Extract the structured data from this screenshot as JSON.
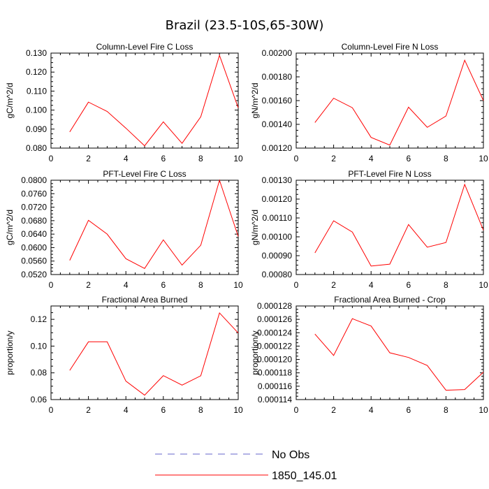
{
  "figure": {
    "title": "Brazil (23.5-10S,65-30W)"
  },
  "colors": {
    "model": "#ff0000",
    "obs": "#6666cc",
    "axis": "#000000"
  },
  "legend": {
    "entries": [
      {
        "label": "No Obs",
        "style": "dashed",
        "color": "#6666cc"
      },
      {
        "label": "1850_145.01",
        "style": "solid",
        "color": "#ff0000"
      }
    ]
  },
  "chart_data": [
    {
      "type": "line",
      "title": "Column-Level Fire C Loss",
      "ylabel": "gC/m^2/d",
      "xlim": [
        0,
        10
      ],
      "ylim": [
        0.08,
        0.13
      ],
      "xticks": [
        0,
        2,
        4,
        6,
        8,
        10
      ],
      "yticks": [
        0.08,
        0.09,
        0.1,
        0.11,
        0.12,
        0.13
      ],
      "yticklabels": [
        "0.080",
        "0.090",
        "0.100",
        "0.110",
        "0.120",
        "0.130"
      ],
      "series": [
        {
          "name": "1850_145.01",
          "x": [
            1,
            2,
            3,
            4,
            5,
            6,
            7,
            8,
            9,
            10
          ],
          "values": [
            0.0885,
            0.1042,
            0.0993,
            0.0905,
            0.0812,
            0.0938,
            0.0825,
            0.0965,
            0.1288,
            0.1012
          ]
        }
      ]
    },
    {
      "type": "line",
      "title": "Column-Level Fire N Loss",
      "ylabel": "gN/m^2/d",
      "xlim": [
        0,
        10
      ],
      "ylim": [
        0.0012,
        0.002
      ],
      "xticks": [
        0,
        2,
        4,
        6,
        8,
        10
      ],
      "yticks": [
        0.0012,
        0.0014,
        0.0016,
        0.0018,
        0.002
      ],
      "yticklabels": [
        "0.00120",
        "0.00140",
        "0.00160",
        "0.00180",
        "0.00200"
      ],
      "series": [
        {
          "name": "1850_145.01",
          "x": [
            1,
            2,
            3,
            4,
            5,
            6,
            7,
            8,
            9,
            10
          ],
          "values": [
            0.001415,
            0.00162,
            0.00154,
            0.00129,
            0.001225,
            0.001545,
            0.001375,
            0.00147,
            0.00194,
            0.0016
          ]
        }
      ]
    },
    {
      "type": "line",
      "title": "PFT-Level Fire C Loss",
      "ylabel": "gC/m^2/d",
      "xlim": [
        0,
        10
      ],
      "ylim": [
        0.052,
        0.08
      ],
      "xticks": [
        0,
        2,
        4,
        6,
        8,
        10
      ],
      "yticks": [
        0.052,
        0.056,
        0.06,
        0.064,
        0.068,
        0.072,
        0.076,
        0.08
      ],
      "yticklabels": [
        "0.0520",
        "0.0560",
        "0.0600",
        "0.0640",
        "0.0680",
        "0.0720",
        "0.0760",
        "0.0800"
      ],
      "series": [
        {
          "name": "1850_145.01",
          "x": [
            1,
            2,
            3,
            4,
            5,
            6,
            7,
            8,
            9,
            10
          ],
          "values": [
            0.0562,
            0.0681,
            0.064,
            0.0567,
            0.0538,
            0.0623,
            0.0548,
            0.0607,
            0.08,
            0.0633
          ]
        }
      ]
    },
    {
      "type": "line",
      "title": "PFT-Level Fire N Loss",
      "ylabel": "gN/m^2/d",
      "xlim": [
        0,
        10
      ],
      "ylim": [
        0.0008,
        0.0013
      ],
      "xticks": [
        0,
        2,
        4,
        6,
        8,
        10
      ],
      "yticks": [
        0.0008,
        0.0009,
        0.001,
        0.0011,
        0.0012,
        0.0013
      ],
      "yticklabels": [
        "0.00080",
        "0.00090",
        "0.00100",
        "0.00110",
        "0.00120",
        "0.00130"
      ],
      "series": [
        {
          "name": "1850_145.01",
          "x": [
            1,
            2,
            3,
            4,
            5,
            6,
            7,
            8,
            9,
            10
          ],
          "values": [
            0.000915,
            0.001085,
            0.001025,
            0.000845,
            0.000855,
            0.001065,
            0.000945,
            0.00097,
            0.001278,
            0.001035
          ]
        }
      ]
    },
    {
      "type": "line",
      "title": "Fractional Area Burned",
      "ylabel": "proportion/y",
      "xlim": [
        0,
        10
      ],
      "ylim": [
        0.06,
        0.13
      ],
      "xticks": [
        0,
        2,
        4,
        6,
        8,
        10
      ],
      "yticks": [
        0.06,
        0.08,
        0.1,
        0.12
      ],
      "yticklabels": [
        "0.06",
        "0.08",
        "0.10",
        "0.12"
      ],
      "series": [
        {
          "name": "1850_145.01",
          "x": [
            1,
            2,
            3,
            4,
            5,
            6,
            7,
            8,
            9,
            10
          ],
          "values": [
            0.0818,
            0.1032,
            0.1032,
            0.0738,
            0.0633,
            0.0779,
            0.0708,
            0.0778,
            0.1248,
            0.1098
          ]
        }
      ]
    },
    {
      "type": "line",
      "title": "Fractional Area Burned - Crop",
      "ylabel": "proportion/y",
      "xlim": [
        0,
        10
      ],
      "ylim": [
        0.000114,
        0.000128
      ],
      "xticks": [
        0,
        2,
        4,
        6,
        8,
        10
      ],
      "yticks": [
        0.000114,
        0.000116,
        0.000118,
        0.00012,
        0.000122,
        0.000124,
        0.000126,
        0.000128
      ],
      "yticklabels": [
        "0.000114",
        "0.000116",
        "0.000118",
        "0.000120",
        "0.000122",
        "0.000124",
        "0.000126",
        "0.000128"
      ],
      "series": [
        {
          "name": "1850_145.01",
          "x": [
            1,
            2,
            3,
            4,
            5,
            6,
            7,
            8,
            9,
            10
          ],
          "values": [
            0.0001238,
            0.0001206,
            0.0001261,
            0.000125,
            0.000121,
            0.0001203,
            0.0001191,
            0.0001154,
            0.0001155,
            0.0001181
          ]
        }
      ]
    }
  ]
}
